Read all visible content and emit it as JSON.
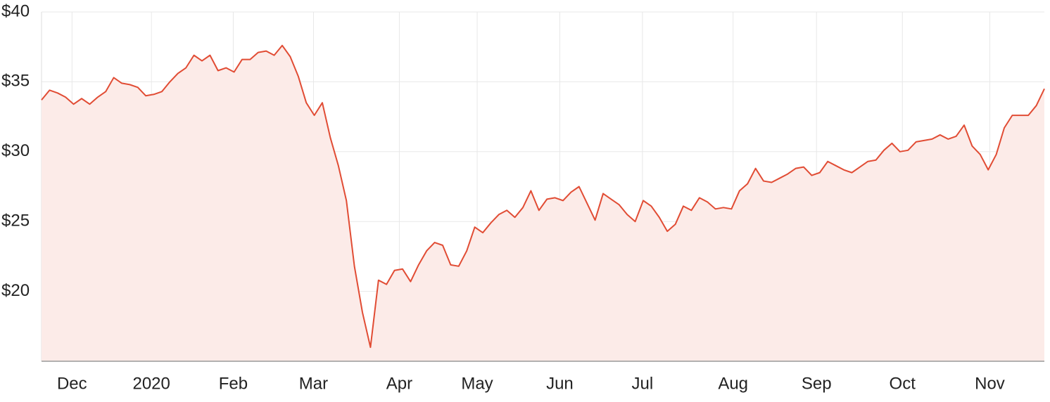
{
  "chart_data": {
    "type": "line",
    "series": [
      {
        "color": "#e14c34",
        "values": [
          33.7,
          34.4,
          34.2,
          33.9,
          33.4,
          33.8,
          33.4,
          33.9,
          34.3,
          35.3,
          34.9,
          34.8,
          34.6,
          34.0,
          34.1,
          34.3,
          35.0,
          35.6,
          36.0,
          36.9,
          36.5,
          36.9,
          35.8,
          36.0,
          35.7,
          36.6,
          36.6,
          37.1,
          37.2,
          36.9,
          37.6,
          36.8,
          35.4,
          33.5,
          32.6,
          33.5,
          31.0,
          29.0,
          26.5,
          21.8,
          18.5,
          16.0,
          20.8,
          20.5,
          21.5,
          21.6,
          20.7,
          21.9,
          22.9,
          23.5,
          23.3,
          21.9,
          21.8,
          22.9,
          24.6,
          24.2,
          24.9,
          25.5,
          25.8,
          25.3,
          26.0,
          27.2,
          25.8,
          26.6,
          26.7,
          26.5,
          27.1,
          27.5,
          26.3,
          25.1,
          27.0,
          26.6,
          26.2,
          25.5,
          25.0,
          26.5,
          26.1,
          25.3,
          24.3,
          24.8,
          26.1,
          25.8,
          26.7,
          26.4,
          25.9,
          26.0,
          25.9,
          27.2,
          27.7,
          28.8,
          27.9,
          27.8,
          28.1,
          28.4,
          28.8,
          28.9,
          28.3,
          28.5,
          29.3,
          29.0,
          28.7,
          28.5,
          28.9,
          29.3,
          29.4,
          30.1,
          30.6,
          30.0,
          30.1,
          30.7,
          30.8,
          30.9,
          31.2,
          30.9,
          31.1,
          31.9,
          30.4,
          29.8,
          28.7,
          29.8,
          31.7,
          32.6,
          32.6,
          32.6,
          33.3,
          34.5
        ]
      }
    ],
    "fill": "#fcebe8",
    "xlim": [
      0,
      125
    ],
    "xticks": [
      {
        "value": 3.8,
        "label": "Dec"
      },
      {
        "value": 13.7,
        "label": "2020"
      },
      {
        "value": 23.9,
        "label": "Feb"
      },
      {
        "value": 33.9,
        "label": "Mar"
      },
      {
        "value": 44.6,
        "label": "Apr"
      },
      {
        "value": 54.3,
        "label": "May"
      },
      {
        "value": 64.6,
        "label": "Jun"
      },
      {
        "value": 74.9,
        "label": "Jul"
      },
      {
        "value": 86.2,
        "label": "Aug"
      },
      {
        "value": 96.6,
        "label": "Sep"
      },
      {
        "value": 107.3,
        "label": "Oct"
      },
      {
        "value": 118.2,
        "label": "Nov"
      }
    ],
    "ylim": [
      15,
      40
    ],
    "yticks": [
      {
        "value": 20,
        "label": "$20"
      },
      {
        "value": 25,
        "label": "$25"
      },
      {
        "value": 30,
        "label": "$30"
      },
      {
        "value": 35,
        "label": "$35"
      },
      {
        "value": 40,
        "label": "$40"
      }
    ],
    "grid": true
  }
}
